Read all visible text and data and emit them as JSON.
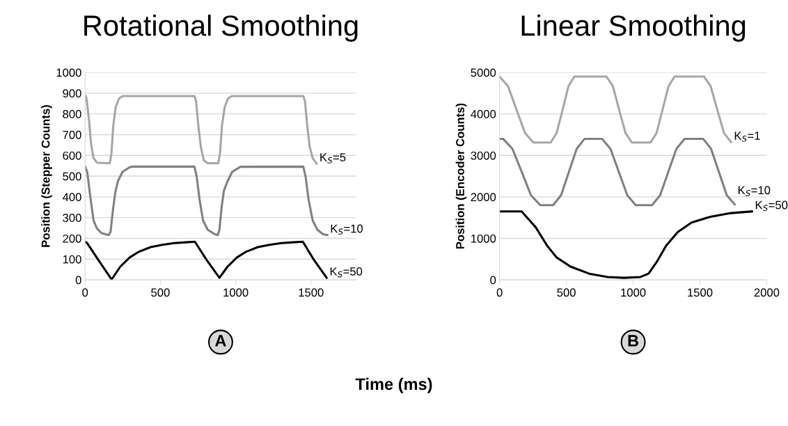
{
  "chart_data": [
    {
      "type": "line",
      "title": "Rotational Smoothing",
      "xlabel": "Time (ms)",
      "ylabel": "Position (Stepper Counts)",
      "xlim": [
        0,
        1800
      ],
      "xticks": [
        0,
        500,
        1000,
        1500
      ],
      "ylim": [
        0,
        1000
      ],
      "yticks": [
        0,
        100,
        200,
        300,
        400,
        500,
        600,
        700,
        800,
        900,
        1000
      ],
      "grid": "y",
      "legend": false,
      "marker": "none",
      "line_style": "solid",
      "series": [
        {
          "color": "#a6a6a6",
          "x": [
            0,
            9,
            25,
            40,
            56,
            79,
            164,
            175,
            187,
            203,
            226,
            252,
            726,
            737,
            752,
            768,
            788,
            814,
            884,
            896,
            909,
            927,
            949,
            974,
            1449,
            1460,
            1475,
            1491,
            1511,
            1537
          ],
          "values": [
            890,
            877,
            777,
            654,
            587,
            565,
            562,
            610,
            744,
            833,
            875,
            886,
            886,
            861,
            744,
            643,
            576,
            562,
            562,
            610,
            744,
            833,
            875,
            886,
            886,
            861,
            744,
            643,
            587,
            560
          ]
        },
        {
          "color": "#808080",
          "x": [
            0,
            14,
            33,
            56,
            79,
            110,
            156,
            169,
            184,
            200,
            218,
            249,
            296,
            319,
            726,
            741,
            760,
            783,
            814,
            861,
            881,
            892,
            907,
            922,
            946,
            977,
            1031,
            1449,
            1464,
            1484,
            1511,
            1542,
            1580,
            1608
          ],
          "values": [
            546,
            521,
            409,
            287,
            247,
            225,
            216,
            231,
            331,
            420,
            476,
            521,
            543,
            546,
            546,
            498,
            387,
            287,
            242,
            220,
            216,
            242,
            353,
            431,
            476,
            521,
            545,
            546,
            498,
            387,
            287,
            242,
            220,
            216
          ]
        },
        {
          "color": "#000000",
          "x": [
            0,
            14,
            87,
            176,
            234,
            296,
            358,
            435,
            512,
            590,
            667,
            729,
            806,
            892,
            946,
            1008,
            1070,
            1147,
            1224,
            1302,
            1379,
            1446,
            1519,
            1604
          ],
          "values": [
            184,
            177,
            97,
            2,
            64,
            108,
            136,
            158,
            169,
            177,
            181,
            184,
            97,
            10,
            64,
            108,
            136,
            158,
            169,
            177,
            181,
            184,
            97,
            10
          ]
        }
      ],
      "annotations": [
        {
          "text": "K$_{S}$=5",
          "x": 1537,
          "y": 560
        },
        {
          "text": "K$_{S}$=10",
          "x": 1608,
          "y": 216
        },
        {
          "text": "K$_{S}$=50",
          "x": 1604,
          "y": 10
        },
        "A"
      ]
    },
    {
      "type": "line",
      "title": "Linear Smoothing",
      "ylabel": "Position (Encoder Counts)",
      "xlim": [
        0,
        2000
      ],
      "xticks": [
        0,
        500,
        1000,
        1500,
        2000
      ],
      "ylim": [
        0,
        5000
      ],
      "yticks": [
        0,
        1000,
        2000,
        3000,
        4000,
        5000
      ],
      "grid": "y",
      "legend": false,
      "marker": "none",
      "line_style": "solid",
      "series": [
        {
          "color": "#a6a6a6",
          "x": [
            0,
            63,
            127,
            190,
            253,
            383,
            427,
            472,
            516,
            560,
            800,
            848,
            895,
            943,
            990,
            1130,
            1175,
            1220,
            1265,
            1310,
            1530,
            1580,
            1630,
            1680,
            1733
          ],
          "values": [
            4900,
            4670,
            4100,
            3540,
            3310,
            3310,
            3540,
            4100,
            4670,
            4900,
            4900,
            4670,
            4100,
            3540,
            3310,
            3310,
            3540,
            4100,
            4670,
            4900,
            4900,
            4670,
            4100,
            3540,
            3320
          ]
        },
        {
          "color": "#808080",
          "x": [
            0,
            26,
            96,
            166,
            235,
            305,
            401,
            460,
            519,
            577,
            636,
            767,
            830,
            893,
            956,
            1019,
            1141,
            1202,
            1263,
            1324,
            1385,
            1524,
            1583,
            1642,
            1701,
            1760
          ],
          "values": [
            3400,
            3400,
            3160,
            2600,
            2040,
            1800,
            1800,
            2040,
            2600,
            3160,
            3400,
            3400,
            3160,
            2600,
            2040,
            1800,
            1800,
            2040,
            2600,
            3160,
            3400,
            3400,
            3160,
            2600,
            2040,
            1820
          ]
        },
        {
          "color": "#000000",
          "x": [
            0,
            165,
            270,
            357,
            427,
            531,
            671,
            810,
            932,
            1054,
            1115,
            1176,
            1246,
            1333,
            1437,
            1577,
            1733,
            1890
          ],
          "values": [
            1650,
            1650,
            1270,
            820,
            540,
            320,
            150,
            70,
            50,
            70,
            150,
            430,
            820,
            1150,
            1380,
            1520,
            1610,
            1650
          ]
        }
      ],
      "annotations": [
        {
          "text": "K$_{S}$=1",
          "x": 1733,
          "y": 3320
        },
        {
          "text": "K$_{S}$=10",
          "x": 1760,
          "y": 1820
        },
        {
          "text": "K$_{S}$=50",
          "x": 1890,
          "y": 1650
        },
        "B"
      ]
    }
  ]
}
